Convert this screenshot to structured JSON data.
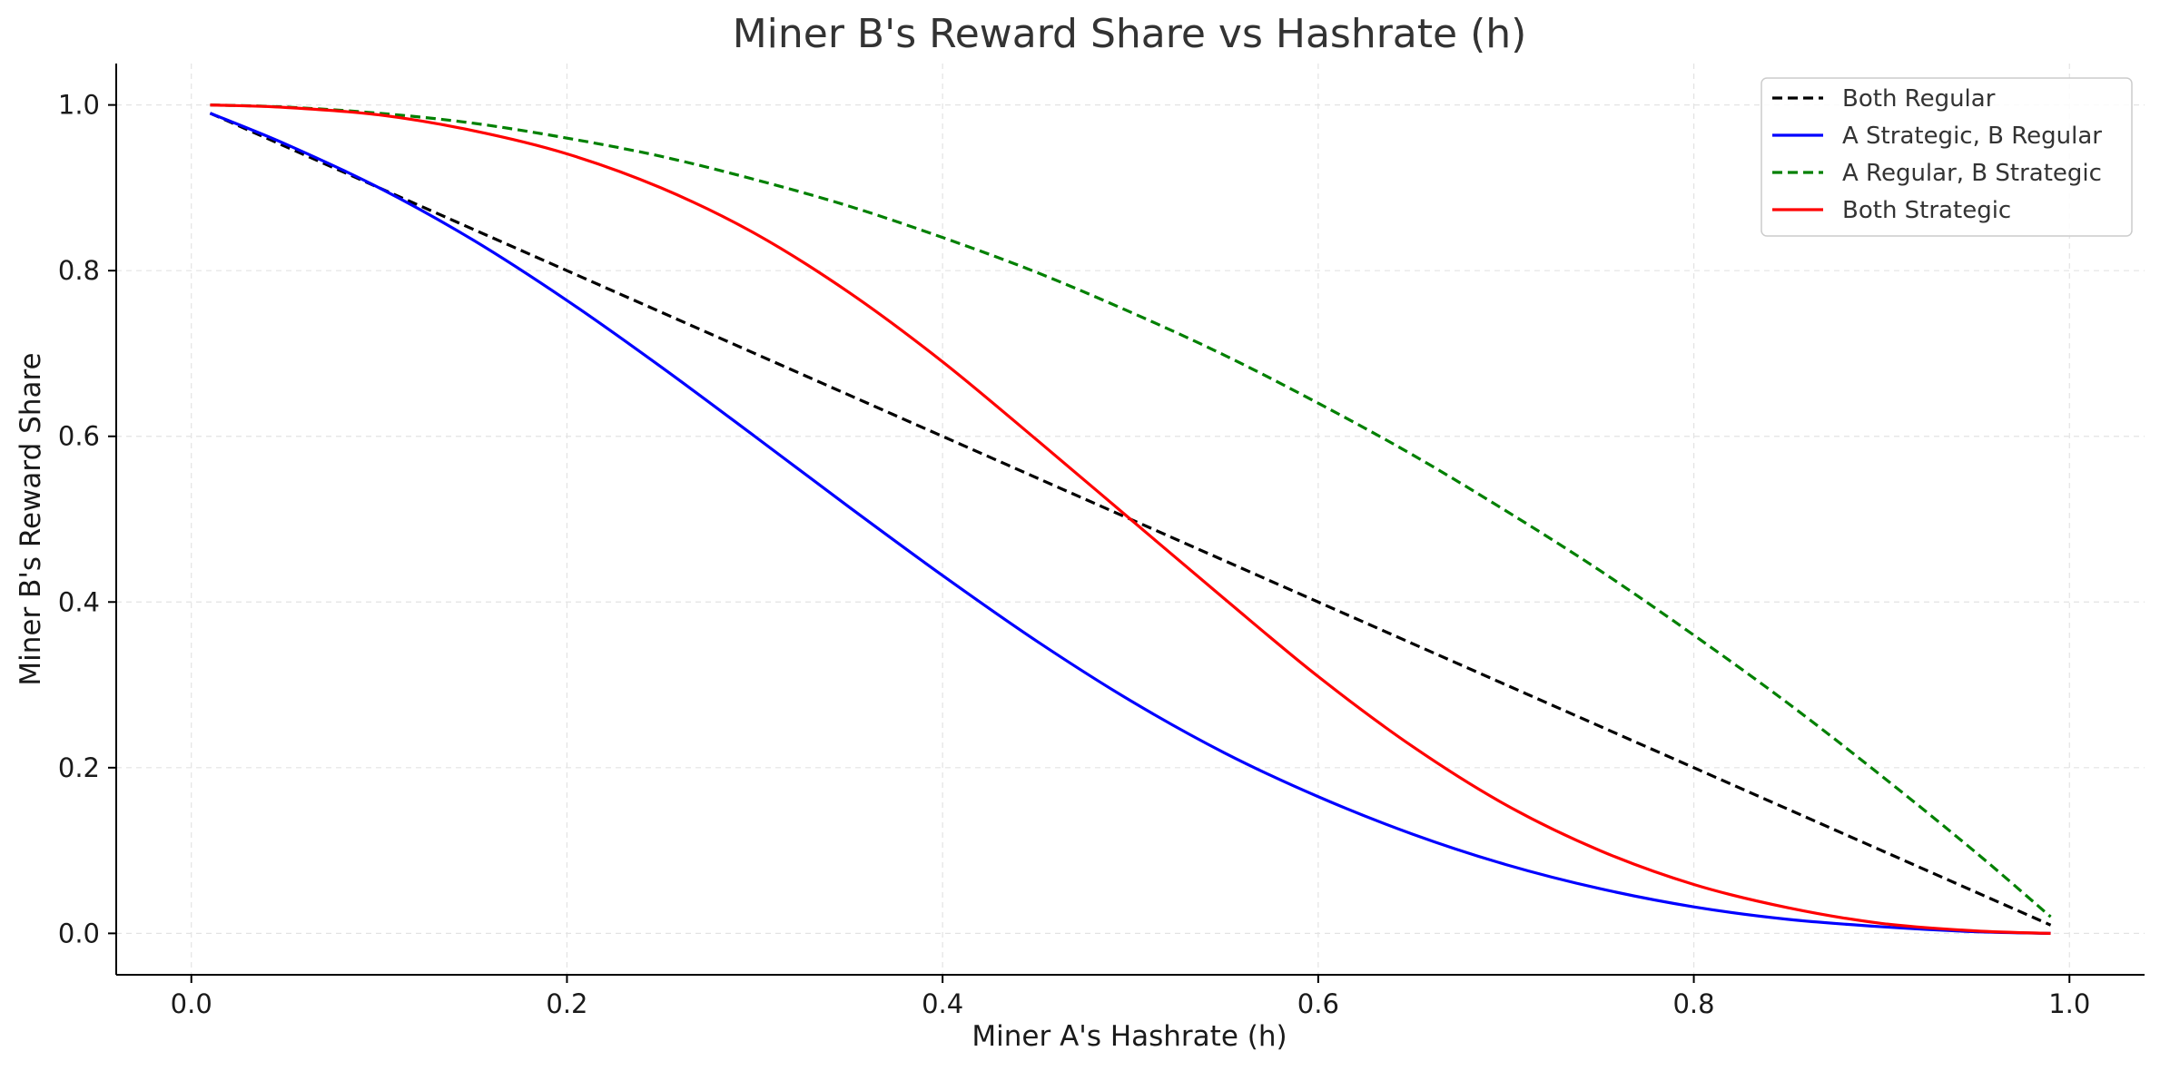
{
  "chart_data": {
    "type": "line",
    "title": "Miner B's Reward Share vs Hashrate (h)",
    "xlabel": "Miner A's Hashrate (h)",
    "ylabel": "Miner B's Reward Share",
    "xlim": [
      -0.04,
      1.04
    ],
    "ylim": [
      -0.05,
      1.05
    ],
    "xticks": [
      0.0,
      0.2,
      0.4,
      0.6,
      0.8,
      1.0
    ],
    "xtick_labels": [
      "0.0",
      "0.2",
      "0.4",
      "0.6",
      "0.8",
      "1.0"
    ],
    "yticks": [
      0.0,
      0.2,
      0.4,
      0.6,
      0.8,
      1.0
    ],
    "ytick_labels": [
      "0.0",
      "0.2",
      "0.4",
      "0.6",
      "0.8",
      "1.0"
    ],
    "grid": true,
    "legend_position": "top-right",
    "x": [
      0.01,
      0.05,
      0.1,
      0.15,
      0.2,
      0.25,
      0.3,
      0.35,
      0.4,
      0.45,
      0.5,
      0.55,
      0.6,
      0.65,
      0.7,
      0.75,
      0.8,
      0.85,
      0.9,
      0.95,
      0.99
    ],
    "series": [
      {
        "name": "Both Regular",
        "color": "#000000",
        "dash": "dashed",
        "values": [
          0.99,
          0.95,
          0.9,
          0.85,
          0.8,
          0.75,
          0.7,
          0.65,
          0.6,
          0.55,
          0.5,
          0.45,
          0.4,
          0.35,
          0.3,
          0.25,
          0.2,
          0.15,
          0.1,
          0.05,
          0.01
        ]
      },
      {
        "name": "A Strategic, B Regular",
        "color": "#0000ff",
        "dash": "solid",
        "values": [
          0.99,
          0.953,
          0.9,
          0.837,
          0.764,
          0.684,
          0.6,
          0.515,
          0.432,
          0.353,
          0.281,
          0.218,
          0.165,
          0.12,
          0.083,
          0.054,
          0.032,
          0.017,
          0.008,
          0.002,
          0.0
        ]
      },
      {
        "name": "A Regular, B Strategic",
        "color": "#008000",
        "dash": "dashed",
        "values": [
          1.0,
          0.9975,
          0.99,
          0.978,
          0.96,
          0.938,
          0.91,
          0.878,
          0.84,
          0.798,
          0.75,
          0.698,
          0.64,
          0.578,
          0.51,
          0.438,
          0.36,
          0.278,
          0.19,
          0.098,
          0.02
        ]
      },
      {
        "name": "Both Strategic",
        "color": "#ff0000",
        "dash": "solid",
        "values": [
          1.0,
          0.997,
          0.988,
          0.969,
          0.941,
          0.9,
          0.845,
          0.774,
          0.69,
          0.596,
          0.5,
          0.404,
          0.31,
          0.226,
          0.155,
          0.1,
          0.059,
          0.031,
          0.012,
          0.003,
          0.0
        ]
      }
    ]
  }
}
